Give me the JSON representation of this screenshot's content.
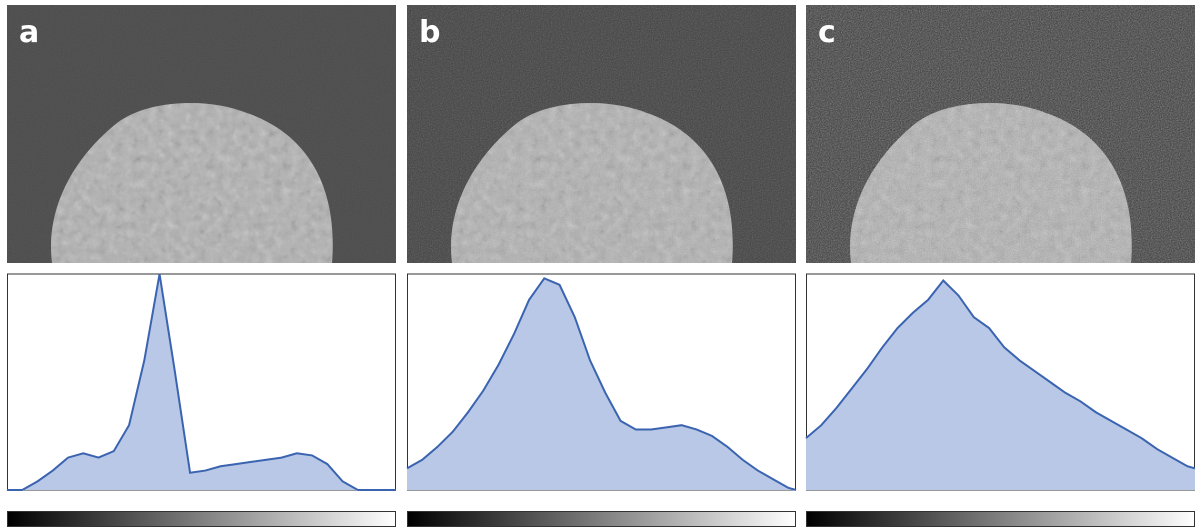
{
  "chart_data": [
    {
      "type": "area",
      "panel_label": "a",
      "color": "#3a63b0",
      "fill": "#b8c8e6",
      "xlim": [
        0,
        255
      ],
      "ylim": [
        0,
        100
      ],
      "x": [
        0,
        10,
        20,
        30,
        40,
        50,
        60,
        70,
        80,
        90,
        100,
        110,
        120,
        130,
        140,
        150,
        160,
        170,
        180,
        190,
        200,
        210,
        220,
        230,
        240,
        250,
        255
      ],
      "values": [
        0,
        0,
        4,
        9,
        15,
        17,
        15,
        18,
        30,
        60,
        100,
        55,
        8,
        9,
        11,
        12,
        13,
        14,
        15,
        17,
        16,
        12,
        4,
        0,
        0,
        0,
        0
      ]
    },
    {
      "type": "area",
      "panel_label": "b",
      "color": "#3a63b0",
      "fill": "#b8c8e6",
      "xlim": [
        0,
        255
      ],
      "ylim": [
        0,
        100
      ],
      "x": [
        0,
        10,
        20,
        30,
        40,
        50,
        60,
        70,
        80,
        90,
        100,
        110,
        120,
        130,
        140,
        150,
        160,
        170,
        180,
        190,
        200,
        210,
        220,
        230,
        240,
        250,
        255
      ],
      "values": [
        10,
        14,
        20,
        27,
        36,
        46,
        58,
        72,
        88,
        98,
        95,
        80,
        60,
        45,
        32,
        28,
        28,
        29,
        30,
        28,
        25,
        20,
        14,
        9,
        5,
        1,
        0
      ]
    },
    {
      "type": "area",
      "panel_label": "c",
      "color": "#3a63b0",
      "fill": "#b8c8e6",
      "xlim": [
        0,
        255
      ],
      "ylim": [
        0,
        100
      ],
      "x": [
        0,
        10,
        20,
        30,
        40,
        50,
        60,
        70,
        80,
        90,
        100,
        110,
        120,
        130,
        140,
        150,
        160,
        170,
        180,
        190,
        200,
        210,
        220,
        230,
        240,
        250,
        255
      ],
      "values": [
        24,
        30,
        38,
        47,
        56,
        66,
        75,
        82,
        88,
        97,
        90,
        80,
        75,
        66,
        60,
        55,
        50,
        45,
        41,
        36,
        32,
        28,
        24,
        19,
        15,
        11,
        10
      ]
    }
  ]
}
